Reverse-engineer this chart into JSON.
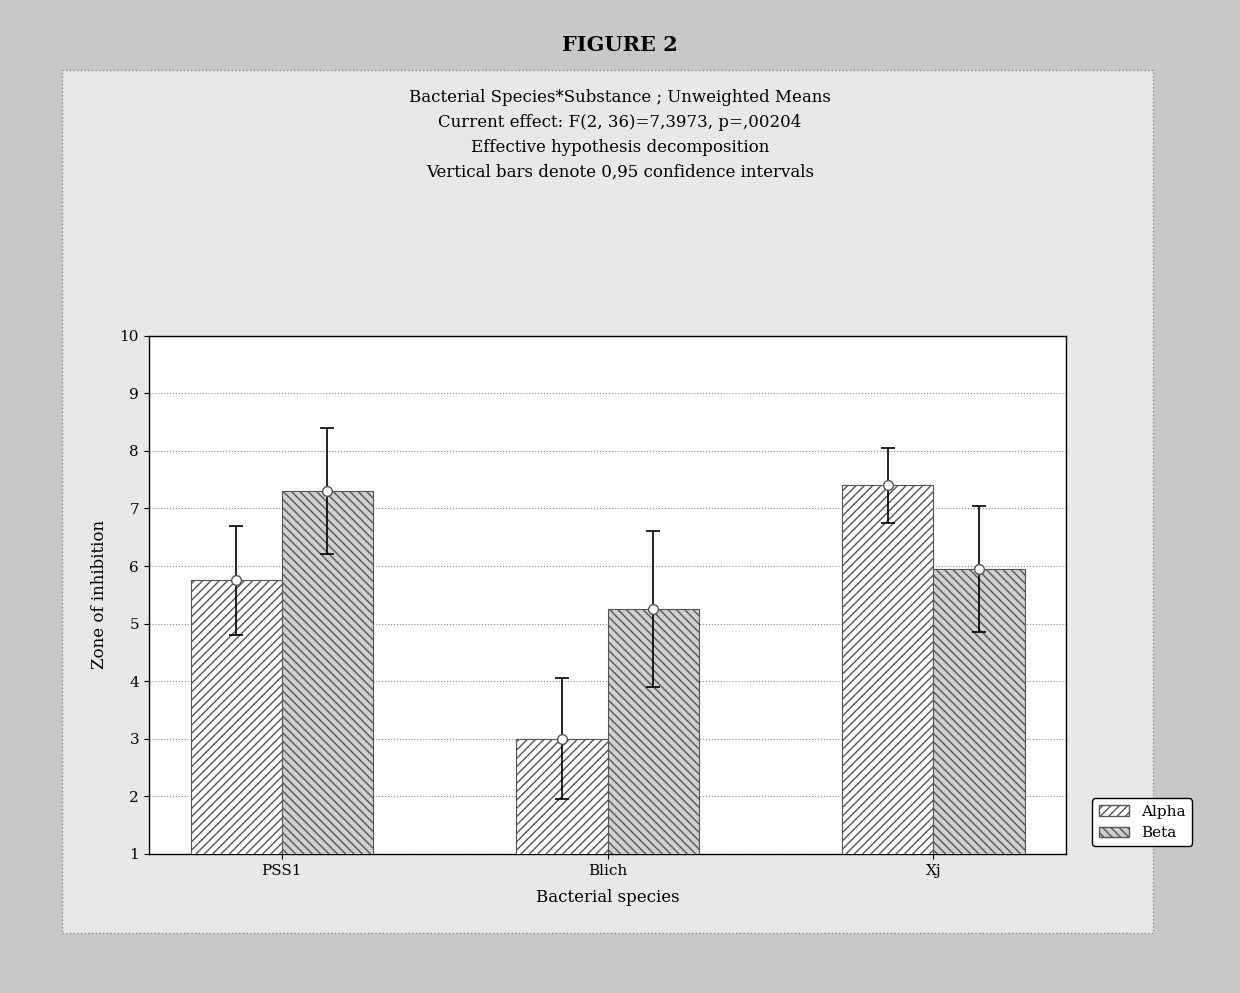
{
  "title": "FIGURE 2",
  "annotation_lines": [
    "Bacterial Species*Substance ; Unweighted Means",
    "Current effect: F(2, 36)=7,3973, p=,00204",
    "Effective hypothesis decomposition",
    "Vertical bars denote 0,95 confidence intervals"
  ],
  "categories": [
    "PSS1",
    "Blich",
    "Xj"
  ],
  "alpha_values": [
    5.75,
    3.0,
    7.4
  ],
  "beta_values": [
    7.3,
    5.25,
    5.95
  ],
  "alpha_errors": [
    0.95,
    1.05,
    0.65
  ],
  "beta_errors": [
    1.1,
    1.35,
    1.1
  ],
  "xlabel": "Bacterial species",
  "ylabel": "Zone of inhibition",
  "ylim": [
    1,
    10
  ],
  "yticks": [
    1,
    2,
    3,
    4,
    5,
    6,
    7,
    8,
    9,
    10
  ],
  "bar_width": 0.28,
  "alpha_hatch": "////",
  "beta_hatch": "\\\\\\\\",
  "legend_labels": [
    "Alpha",
    "Beta"
  ],
  "plot_bg_color": "#ffffff",
  "outer_bg_color": "#c8c8c8",
  "inner_box_color": "#e8e8e8",
  "annotation_fontsize": 12,
  "title_fontsize": 15,
  "axis_fontsize": 12,
  "tick_fontsize": 11
}
